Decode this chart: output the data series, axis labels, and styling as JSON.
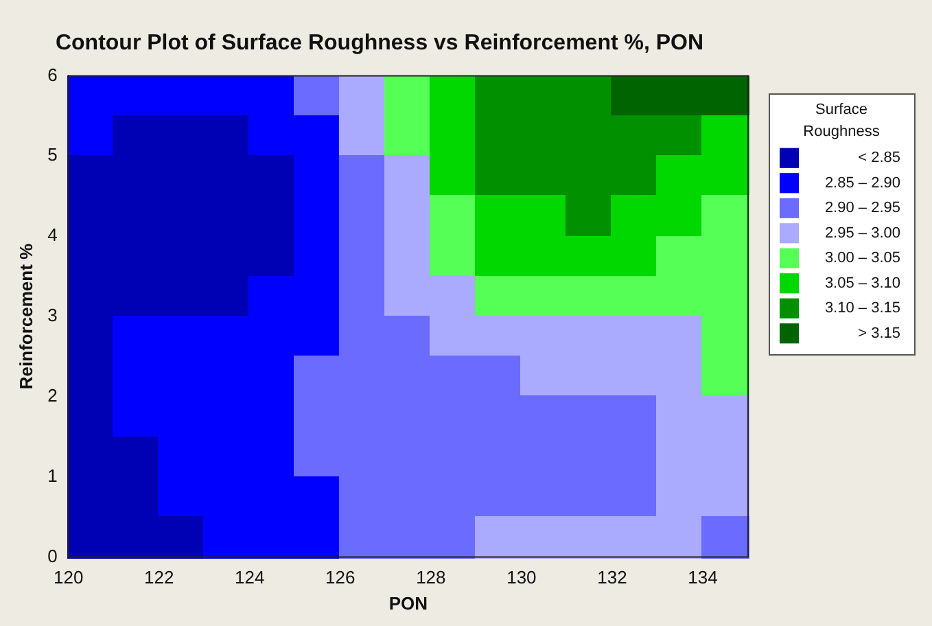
{
  "chart_data": {
    "type": "heatmap",
    "title": "Contour Plot of Surface Roughness vs Reinforcement %, PON",
    "xlabel": "PON",
    "ylabel": "Reinforcement %",
    "legend_title": "Surface Roughness",
    "clim": [
      3.2,
      2.8
    ],
    "xlim": [
      120,
      135
    ],
    "xticks": [
      120,
      122,
      124,
      126,
      128,
      130,
      132,
      134
    ],
    "ylim": [
      0,
      6
    ],
    "yticks": [
      0,
      1,
      2,
      3,
      4,
      5,
      6
    ],
    "cticks": [
      {
        "value": 2.825,
        "label": "< 2.85"
      },
      {
        "value": 2.875,
        "label": "2.85 – 2.90"
      },
      {
        "value": 2.925,
        "label": "2.90 – 2.95"
      },
      {
        "value": 2.975,
        "label": "2.95 – 3.00"
      },
      {
        "value": 3.025,
        "label": "3.00 – 3.05"
      },
      {
        "value": 3.075,
        "label": "3.05 – 3.10"
      },
      {
        "value": 3.125,
        "label": "3.10 – 3.15"
      },
      {
        "value": 3.175,
        "label": "> 3.15"
      }
    ],
    "colors": [
      "#0000b4",
      "#0000ff",
      "#6b6bff",
      "#aaaaff",
      "#55ff55",
      "#00d800",
      "#009000",
      "#006400"
    ],
    "cells": [
      [
        2.875,
        2.875,
        2.875,
        2.875,
        2.875,
        2.925,
        2.975,
        3.025,
        3.075,
        3.125,
        3.125,
        3.125,
        3.175,
        3.175,
        3.175
      ],
      [
        2.875,
        2.825,
        2.825,
        2.825,
        2.875,
        2.875,
        2.975,
        3.025,
        3.075,
        3.125,
        3.125,
        3.125,
        3.125,
        3.125,
        3.075
      ],
      [
        2.825,
        2.825,
        2.825,
        2.825,
        2.825,
        2.875,
        2.925,
        2.975,
        3.075,
        3.125,
        3.125,
        3.125,
        3.125,
        3.075,
        3.075
      ],
      [
        2.825,
        2.825,
        2.825,
        2.825,
        2.825,
        2.875,
        2.925,
        2.975,
        3.025,
        3.075,
        3.075,
        3.125,
        3.075,
        3.075,
        3.025
      ],
      [
        2.825,
        2.825,
        2.825,
        2.825,
        2.825,
        2.875,
        2.925,
        2.975,
        3.025,
        3.075,
        3.075,
        3.075,
        3.075,
        3.025,
        3.025
      ],
      [
        2.825,
        2.825,
        2.825,
        2.825,
        2.875,
        2.875,
        2.925,
        2.975,
        2.975,
        3.025,
        3.025,
        3.025,
        3.025,
        3.025,
        3.025
      ],
      [
        2.825,
        2.875,
        2.875,
        2.875,
        2.875,
        2.875,
        2.925,
        2.925,
        2.975,
        2.975,
        2.975,
        2.975,
        2.975,
        2.975,
        3.025
      ],
      [
        2.825,
        2.875,
        2.875,
        2.875,
        2.875,
        2.925,
        2.925,
        2.925,
        2.925,
        2.925,
        2.975,
        2.975,
        2.975,
        2.975,
        3.025
      ],
      [
        2.825,
        2.875,
        2.875,
        2.875,
        2.875,
        2.925,
        2.925,
        2.925,
        2.925,
        2.925,
        2.925,
        2.925,
        2.925,
        2.975,
        2.975
      ],
      [
        2.825,
        2.825,
        2.875,
        2.875,
        2.875,
        2.925,
        2.925,
        2.925,
        2.925,
        2.925,
        2.925,
        2.925,
        2.925,
        2.975,
        2.975
      ],
      [
        2.825,
        2.825,
        2.875,
        2.875,
        2.875,
        2.875,
        2.925,
        2.925,
        2.925,
        2.925,
        2.925,
        2.925,
        2.925,
        2.975,
        2.975
      ],
      [
        2.825,
        2.825,
        2.825,
        2.875,
        2.875,
        2.875,
        2.925,
        2.925,
        2.925,
        2.975,
        2.975,
        2.975,
        2.975,
        2.975,
        2.925
      ]
    ]
  }
}
